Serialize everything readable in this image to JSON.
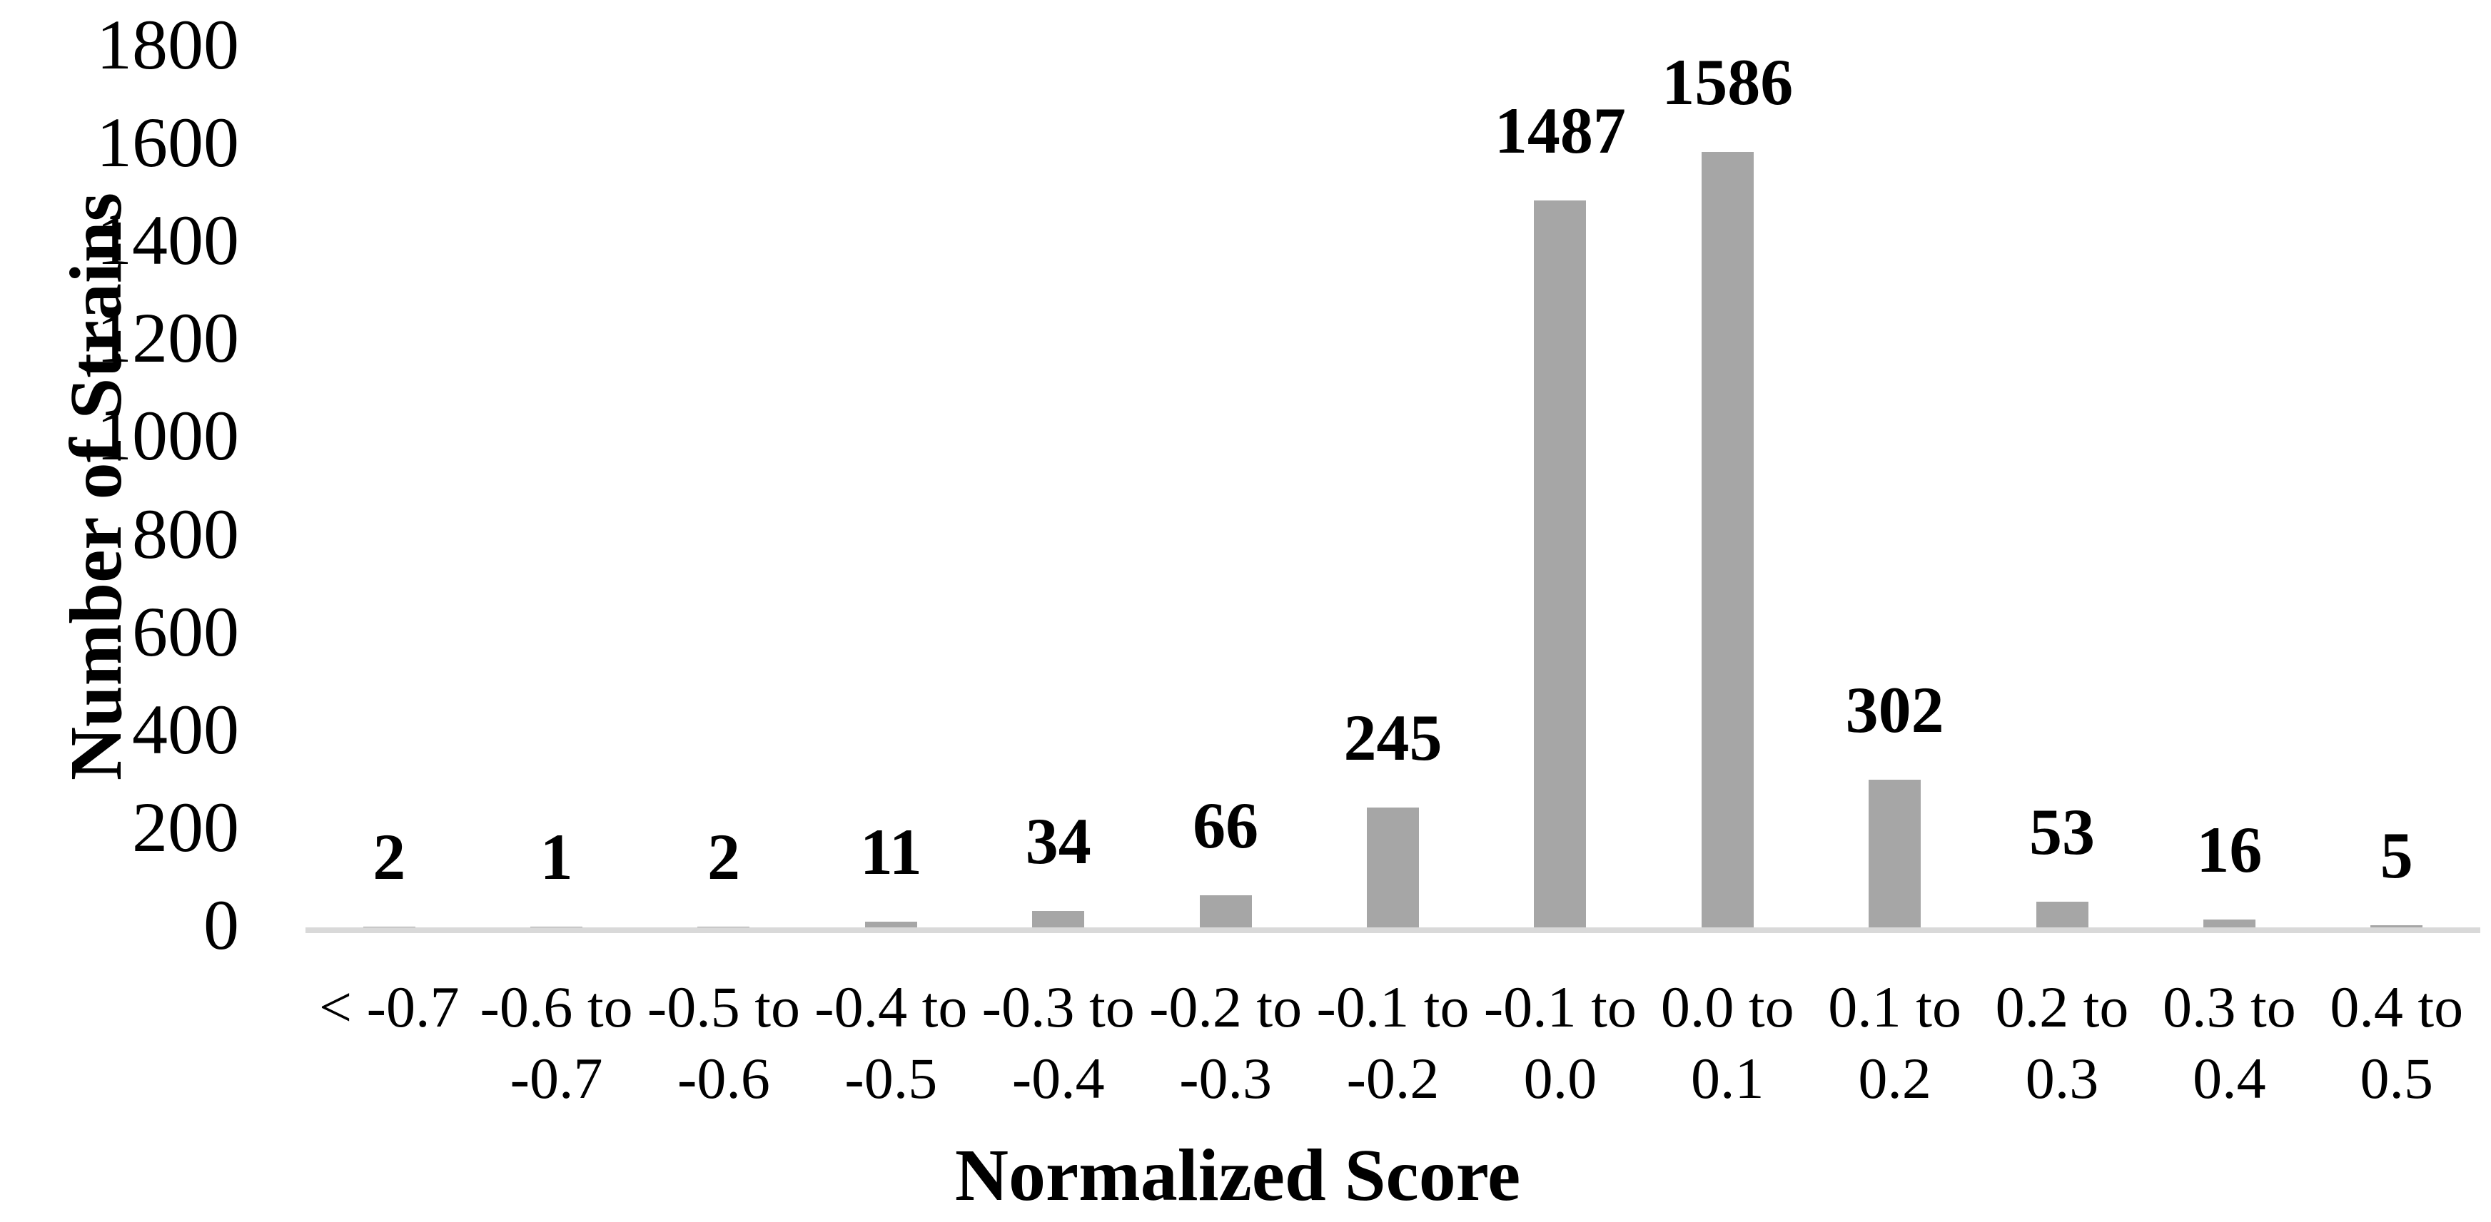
{
  "chart_data": {
    "type": "bar",
    "title": "",
    "xlabel": "Normalized Score",
    "ylabel": "Number of Strains",
    "categories": [
      "< -0.7",
      "-0.6 to -0.7",
      "-0.5 to -0.6",
      "-0.4 to -0.5",
      "-0.3 to -0.4",
      "-0.2 to -0.3",
      "-0.1 to -0.2",
      "-0.1 to 0.0",
      "0.0 to 0.1",
      "0.1 to 0.2",
      "0.2 to 0.3",
      "0.3 to 0.4",
      "0.4 to 0.5"
    ],
    "category_lines": [
      [
        "< -0.7",
        ""
      ],
      [
        "-0.6 to",
        "-0.7"
      ],
      [
        "-0.5 to",
        "-0.6"
      ],
      [
        "-0.4 to",
        "-0.5"
      ],
      [
        "-0.3 to",
        "-0.4"
      ],
      [
        "-0.2 to",
        "-0.3"
      ],
      [
        "-0.1 to",
        "-0.2"
      ],
      [
        "-0.1 to",
        "0.0"
      ],
      [
        "0.0 to",
        "0.1"
      ],
      [
        "0.1 to",
        "0.2"
      ],
      [
        "0.2 to",
        "0.3"
      ],
      [
        "0.3 to",
        "0.4"
      ],
      [
        "0.4 to",
        "0.5"
      ]
    ],
    "values": [
      2,
      1,
      2,
      11,
      34,
      66,
      245,
      1487,
      1586,
      302,
      53,
      16,
      5
    ],
    "data_labels": [
      "2",
      "1",
      "2",
      "11",
      "34",
      "66",
      "245",
      "1487",
      "1586",
      "302",
      "53",
      "16",
      "5"
    ],
    "yticks": [
      0,
      200,
      400,
      600,
      800,
      1000,
      1200,
      1400,
      1600,
      1800
    ],
    "ylim": [
      0,
      1800
    ],
    "grid": false,
    "legend": false,
    "bar_color": "#a6a6a6",
    "axis_line_color": "#d9d9d9",
    "text_color": "#000000",
    "background_color": "#ffffff"
  }
}
